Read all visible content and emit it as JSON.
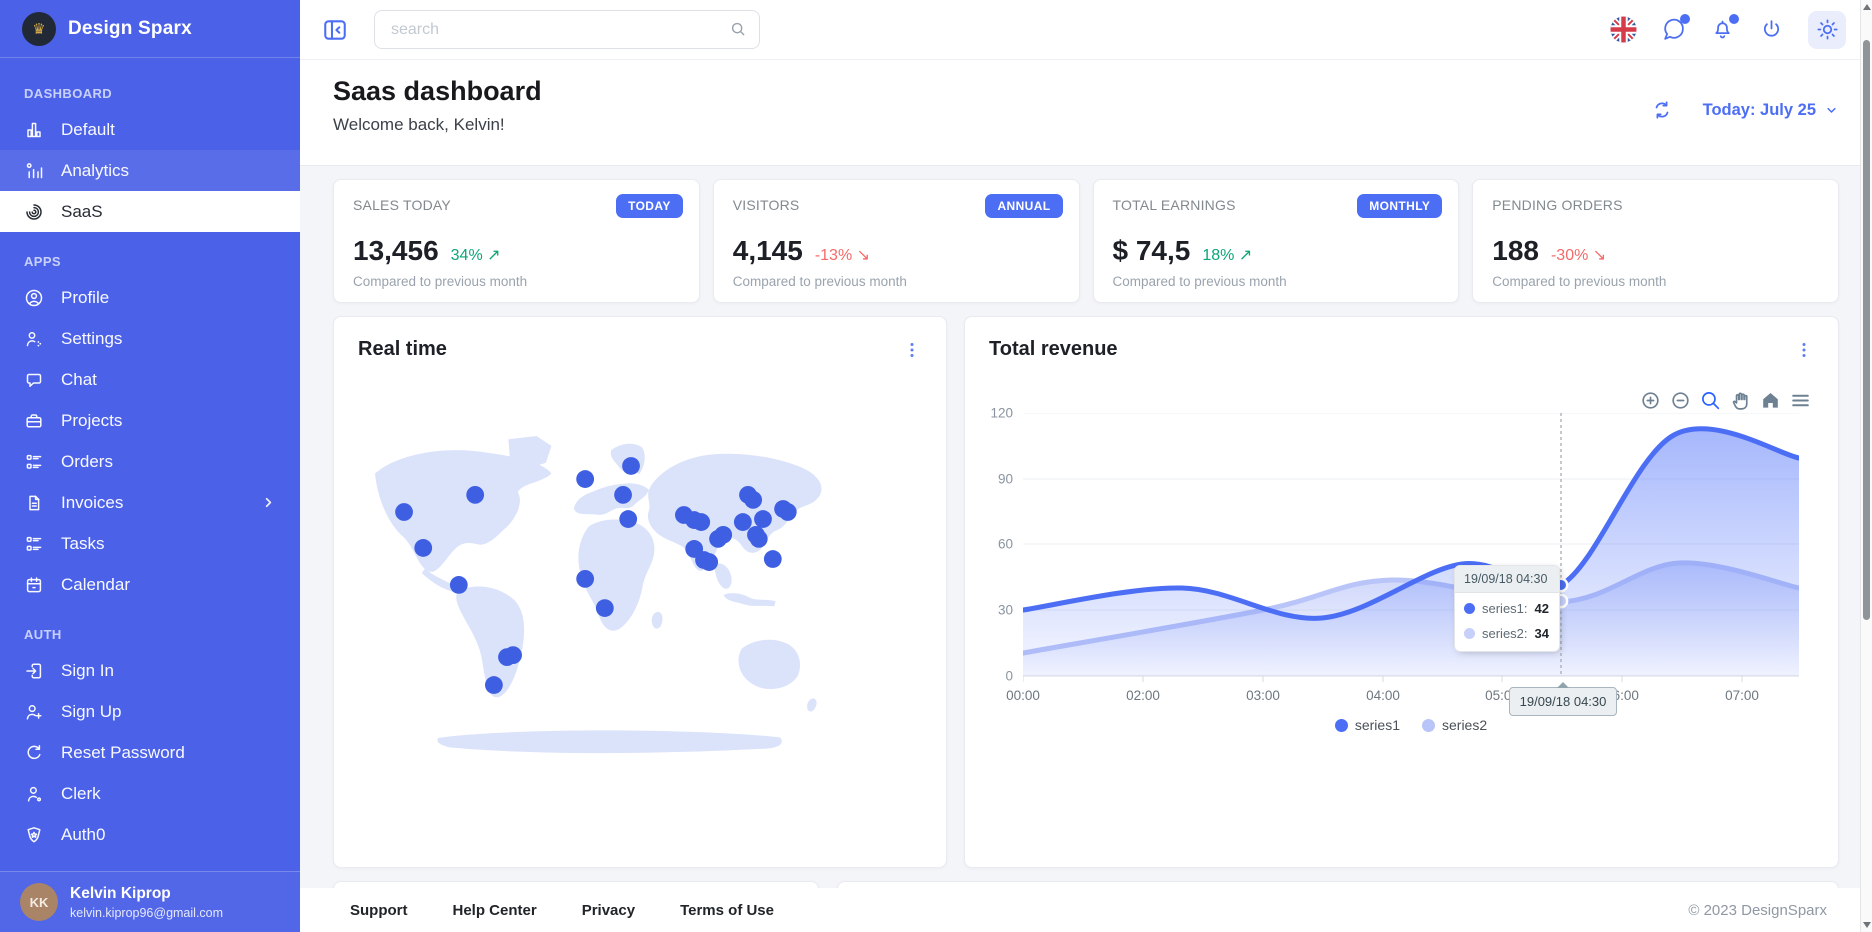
{
  "brand": {
    "name": "Design Sparx",
    "logo_icon": "crown-icon"
  },
  "sidebar": {
    "sections": [
      {
        "label": "DASHBOARD",
        "items": [
          {
            "label": "Default",
            "icon": "bar-chart"
          },
          {
            "label": "Analytics",
            "icon": "analytics-chart"
          },
          {
            "label": "SaaS",
            "icon": "spiral"
          }
        ]
      },
      {
        "label": "APPS",
        "items": [
          {
            "label": "Profile",
            "icon": "user-circle"
          },
          {
            "label": "Settings",
            "icon": "user-gear"
          },
          {
            "label": "Chat",
            "icon": "chat-bubble"
          },
          {
            "label": "Projects",
            "icon": "briefcase"
          },
          {
            "label": "Orders",
            "icon": "list-details"
          },
          {
            "label": "Invoices",
            "icon": "file-invoice",
            "has_submenu": true
          },
          {
            "label": "Tasks",
            "icon": "list-details"
          },
          {
            "label": "Calendar",
            "icon": "calendar"
          }
        ]
      },
      {
        "label": "AUTH",
        "items": [
          {
            "label": "Sign In",
            "icon": "login"
          },
          {
            "label": "Sign Up",
            "icon": "user-plus"
          },
          {
            "label": "Reset Password",
            "icon": "rotate"
          },
          {
            "label": "Clerk",
            "icon": "user-dot"
          },
          {
            "label": "Auth0",
            "icon": "shield-star"
          }
        ]
      }
    ],
    "user": {
      "name": "Kelvin Kiprop",
      "email": "kelvin.kiprop96@gmail.com",
      "avatar_initials": "KK"
    }
  },
  "topbar": {
    "search_placeholder": "search"
  },
  "header": {
    "title": "Saas dashboard",
    "subtitle": "Welcome back, Kelvin!",
    "date_filter": "Today: July 25"
  },
  "stats": [
    {
      "title": "SALES TODAY",
      "badge": "TODAY",
      "value": "13,456",
      "delta": "34%",
      "trend_icon": "↗",
      "trend": "up",
      "note": "Compared to previous month"
    },
    {
      "title": "VISITORS",
      "badge": "ANNUAL",
      "value": "4,145",
      "delta": "-13%",
      "trend_icon": "↘",
      "trend": "down",
      "note": "Compared to previous month"
    },
    {
      "title": "TOTAL EARNINGS",
      "badge": "MONTHLY",
      "value": "$ 74,5",
      "delta": "18%",
      "trend_icon": "↗",
      "trend": "up",
      "note": "Compared to previous month"
    },
    {
      "title": "PENDING ORDERS",
      "badge": "",
      "value": "188",
      "delta": "-30%",
      "trend_icon": "↘",
      "trend": "down",
      "note": "Compared to previous month"
    }
  ],
  "realtime": {
    "title": "Real time",
    "map_dots": [
      [
        7.7,
        24.7
      ],
      [
        11.8,
        35.4
      ],
      [
        19.4,
        46.4
      ],
      [
        22.9,
        19.6
      ],
      [
        29.7,
        67.9
      ],
      [
        31.0,
        67.3
      ],
      [
        26.9,
        76.2
      ],
      [
        46.4,
        14.9
      ],
      [
        56.2,
        11.0
      ],
      [
        54.5,
        19.6
      ],
      [
        55.6,
        26.8
      ],
      [
        46.4,
        44.6
      ],
      [
        50.6,
        53.3
      ],
      [
        67.5,
        25.6
      ],
      [
        69.7,
        27.1
      ],
      [
        71.2,
        27.7
      ],
      [
        69.7,
        35.7
      ],
      [
        74.8,
        32.7
      ],
      [
        75.9,
        31.5
      ],
      [
        71.8,
        39.0
      ],
      [
        72.9,
        39.6
      ],
      [
        81.2,
        19.6
      ],
      [
        82.3,
        21.1
      ],
      [
        80.1,
        27.7
      ],
      [
        84.4,
        26.8
      ],
      [
        82.9,
        31.5
      ],
      [
        83.5,
        32.7
      ],
      [
        88.7,
        23.8
      ],
      [
        89.7,
        24.7
      ],
      [
        86.5,
        38.7
      ]
    ]
  },
  "revenue": {
    "title": "Total revenue"
  },
  "chart_data": {
    "type": "area",
    "title": "Total revenue",
    "x_axis_type": "datetime",
    "x_tick_labels": [
      "00:00",
      "02:00",
      "03:00",
      "04:00",
      "05:00",
      "06:00",
      "07:00"
    ],
    "y_tick_labels": [
      "120",
      "90",
      "60",
      "30",
      "0"
    ],
    "ylim": [
      0,
      120
    ],
    "grid": true,
    "legend_position": "bottom",
    "series": [
      {
        "name": "series1",
        "color": "#4c6ef5",
        "values_at_ticks": [
          30,
          38,
          32,
          40,
          49,
          72,
          105
        ]
      },
      {
        "name": "series2",
        "color": "#b9c4f8",
        "values_at_ticks": [
          10,
          20,
          30,
          43,
          36,
          44,
          48
        ]
      }
    ],
    "tooltip": {
      "datetime": "19/09/18 04:30",
      "rows": [
        {
          "name": "series1",
          "value": "42",
          "color": "#4c6ef5"
        },
        {
          "name": "series2",
          "value": "34",
          "color": "#c7d0fa"
        }
      ]
    },
    "xaxis_tooltip": "19/09/18 04:30"
  },
  "footer": {
    "links": [
      "Support",
      "Help Center",
      "Privacy",
      "Terms of Use"
    ],
    "copyright": "© 2023 DesignSparx"
  },
  "colors": {
    "accent": "#4c6ef5",
    "sidebar": "#4b61e8",
    "positive": "#0ca678",
    "negative": "#f46a6a",
    "map_land": "#dbe3fb",
    "map_dot": "#3e5fe2"
  }
}
